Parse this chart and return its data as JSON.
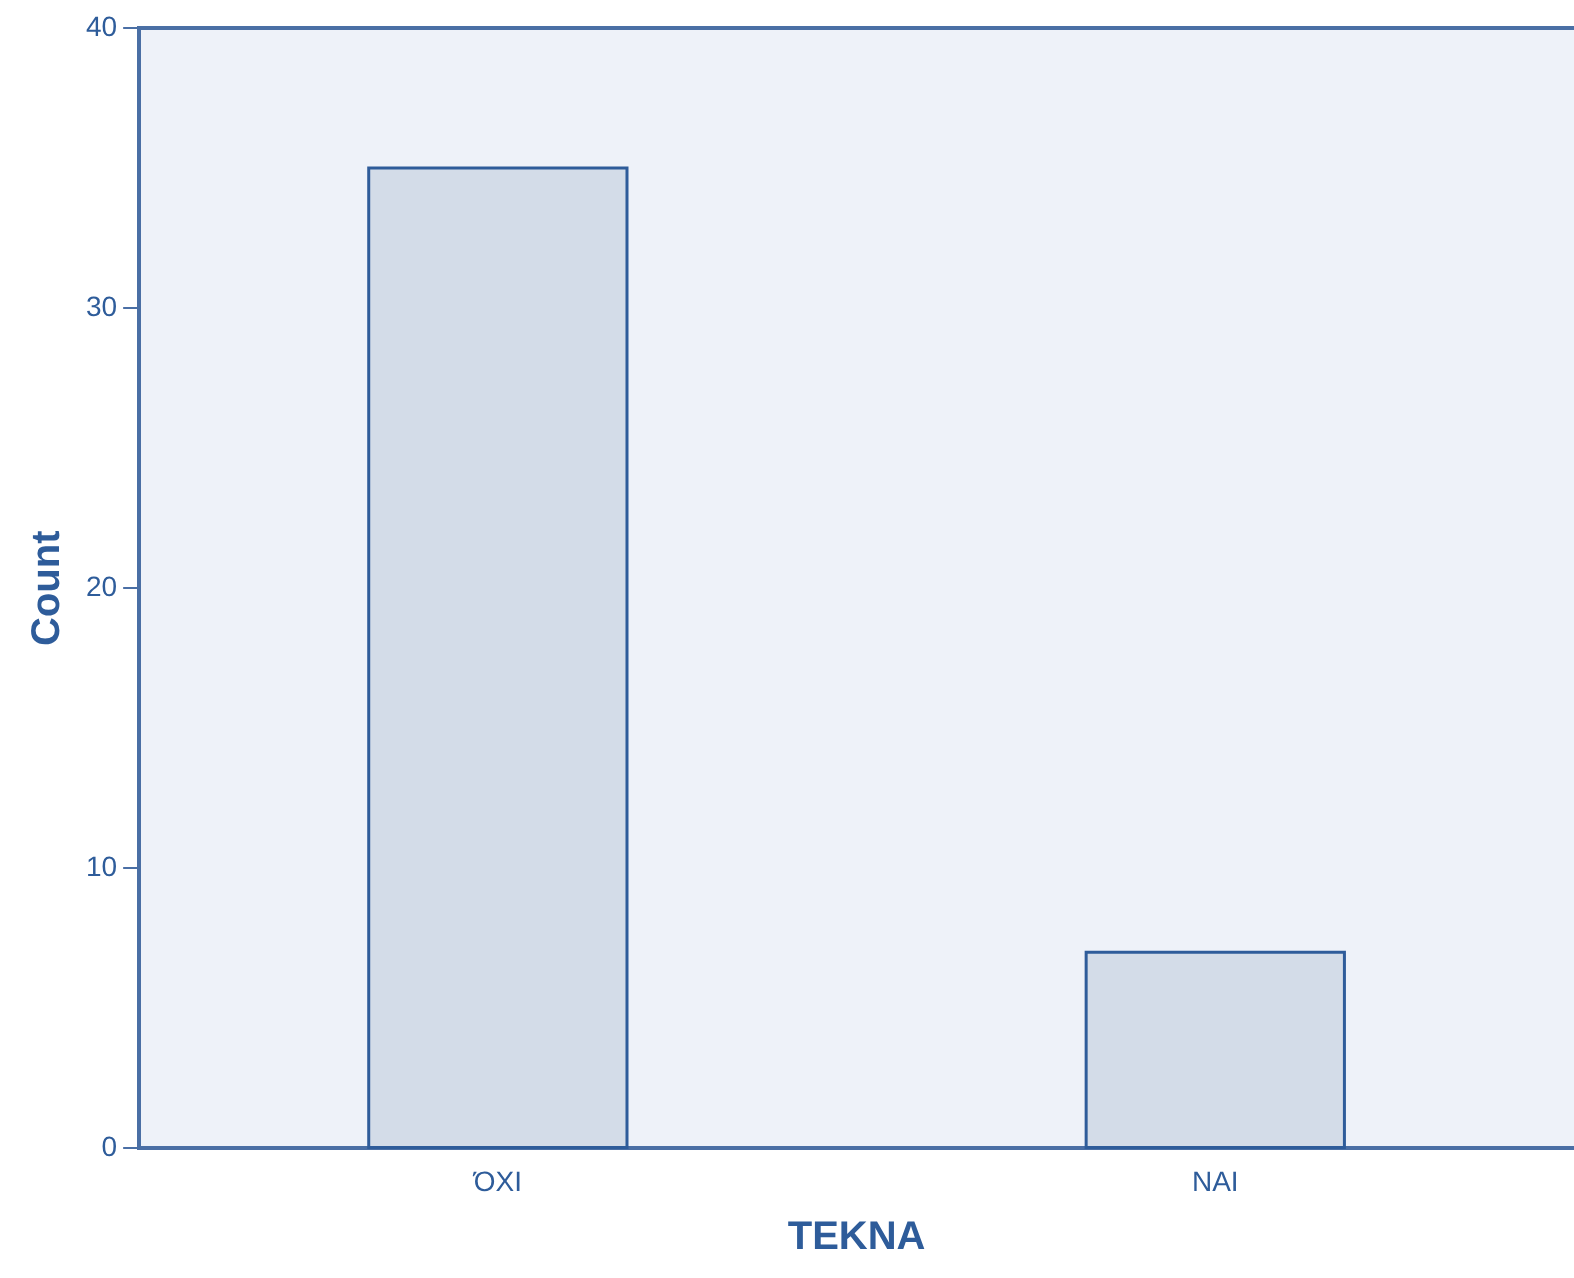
{
  "chart_data": {
    "type": "bar",
    "xlabel": "ΤΕΚΝΑ",
    "ylabel": "Count",
    "categories": [
      "ΌΧΙ",
      "ΝΑΙ"
    ],
    "values": [
      35,
      7
    ],
    "color": "#d3dce8",
    "ylim": [
      0,
      40
    ],
    "yticks": [
      0,
      10,
      20,
      30,
      40
    ],
    "grid": false,
    "legend": false
  }
}
